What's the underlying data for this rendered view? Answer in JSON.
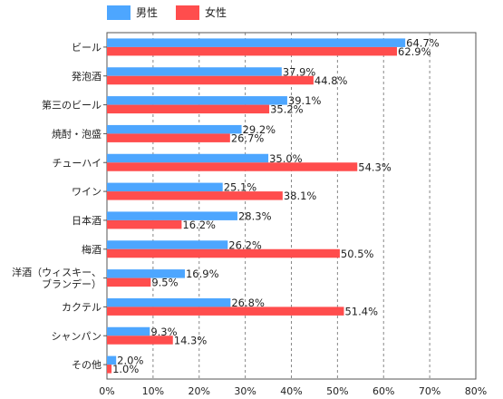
{
  "chart_data": {
    "type": "bar",
    "orientation": "horizontal",
    "categories": [
      [
        "ビール"
      ],
      [
        "発泡酒"
      ],
      [
        "第三のビール"
      ],
      [
        "焼酎・泡盛"
      ],
      [
        "チューハイ"
      ],
      [
        "ワイン"
      ],
      [
        "日本酒"
      ],
      [
        "梅酒"
      ],
      [
        "洋酒（ウィスキー、",
        "ブランデー）"
      ],
      [
        "カクテル"
      ],
      [
        "シャンパン"
      ],
      [
        "その他"
      ]
    ],
    "series": [
      {
        "name": "男性",
        "color": "#4da6ff",
        "values": [
          64.7,
          37.9,
          39.1,
          29.2,
          35.0,
          25.1,
          28.3,
          26.2,
          16.9,
          26.8,
          9.3,
          2.0
        ],
        "labels": [
          "64.7%",
          "37.9%",
          "39.1%",
          "29.2%",
          "35.0%",
          "25.1%",
          "28.3%",
          "26.2%",
          "16.9%",
          "26.8%",
          "9.3%",
          "2.0%"
        ]
      },
      {
        "name": "女性",
        "color": "#ff4d4d",
        "values": [
          62.9,
          44.8,
          35.2,
          26.7,
          54.3,
          38.1,
          16.2,
          50.5,
          9.5,
          51.4,
          14.3,
          1.0
        ],
        "labels": [
          "62.9%",
          "44.8%",
          "35.2%",
          "26.7%",
          "54.3%",
          "38.1%",
          "16.2%",
          "50.5%",
          "9.5%",
          "51.4%",
          "14.3%",
          "1.0%"
        ]
      }
    ],
    "xlim": [
      0,
      80
    ],
    "xticks": [
      0,
      10,
      20,
      30,
      40,
      50,
      60,
      70,
      80
    ],
    "xtick_labels": [
      "0%",
      "10%",
      "20%",
      "30%",
      "40%",
      "50%",
      "60%",
      "70%",
      "80%"
    ],
    "grid": "vertical-dashed",
    "legend_position": "top"
  }
}
